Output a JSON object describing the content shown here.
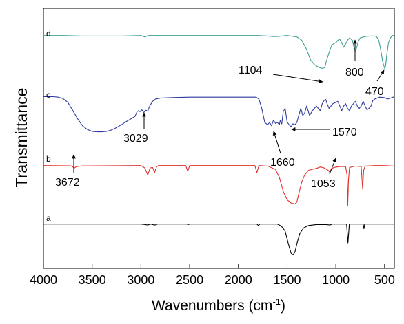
{
  "chart_data": {
    "type": "line",
    "title": "",
    "xlabel": "Wavenumbers (cm",
    "xlabel_sup": "-1",
    "xlabel_close": ")",
    "ylabel": "Transmittance",
    "xlim": [
      4000,
      400
    ],
    "x_reversed": true,
    "x_ticks": [
      4000,
      3500,
      3000,
      2500,
      2000,
      1500,
      1000,
      500
    ],
    "x_tick_labels": [
      "4000",
      "3500",
      "3000",
      "2500",
      "2000",
      "1500",
      "1000",
      "500"
    ],
    "y_ticks": false,
    "grid": false,
    "legend": "none",
    "series": [
      {
        "name": "a",
        "color": "#000000",
        "offset": 0.83,
        "points": [
          [
            4000,
            0.0
          ],
          [
            3000,
            0.0
          ],
          [
            2955,
            0.01
          ],
          [
            2930,
            0.02
          ],
          [
            2900,
            0.0
          ],
          [
            2880,
            0.01
          ],
          [
            2855,
            0.02
          ],
          [
            2830,
            0.0
          ],
          [
            2530,
            0.0
          ],
          [
            2515,
            0.01
          ],
          [
            2500,
            0.0
          ],
          [
            1810,
            0.0
          ],
          [
            1795,
            0.03
          ],
          [
            1780,
            0.0
          ],
          [
            1600,
            0.0
          ],
          [
            1560,
            0.04
          ],
          [
            1520,
            0.15
          ],
          [
            1490,
            0.4
          ],
          [
            1460,
            0.62
          ],
          [
            1440,
            0.66
          ],
          [
            1420,
            0.6
          ],
          [
            1400,
            0.42
          ],
          [
            1370,
            0.2
          ],
          [
            1330,
            0.08
          ],
          [
            1280,
            0.03
          ],
          [
            1200,
            0.01
          ],
          [
            1100,
            0.01
          ],
          [
            1060,
            0.02
          ],
          [
            1040,
            0.0
          ],
          [
            890,
            0.0
          ],
          [
            876,
            0.4
          ],
          [
            862,
            0.0
          ],
          [
            860,
            0.0
          ],
          [
            720,
            0.0
          ],
          [
            712,
            0.1
          ],
          [
            704,
            0.0
          ],
          [
            400,
            0.0
          ]
        ]
      },
      {
        "name": "b",
        "color": "#e0302a",
        "offset": 0.605,
        "points": [
          [
            4000,
            0.0
          ],
          [
            3720,
            0.005
          ],
          [
            3680,
            0.05
          ],
          [
            3660,
            0.02
          ],
          [
            3600,
            0.008
          ],
          [
            3000,
            0.0
          ],
          [
            2960,
            0.05
          ],
          [
            2930,
            0.2
          ],
          [
            2905,
            0.05
          ],
          [
            2880,
            0.04
          ],
          [
            2860,
            0.15
          ],
          [
            2840,
            0.03
          ],
          [
            2820,
            0.0
          ],
          [
            2540,
            0.0
          ],
          [
            2520,
            0.12
          ],
          [
            2500,
            0.0
          ],
          [
            1830,
            0.0
          ],
          [
            1810,
            0.15
          ],
          [
            1790,
            0.0
          ],
          [
            1700,
            0.01
          ],
          [
            1620,
            0.08
          ],
          [
            1580,
            0.25
          ],
          [
            1540,
            0.55
          ],
          [
            1500,
            0.73
          ],
          [
            1460,
            0.8
          ],
          [
            1420,
            0.82
          ],
          [
            1400,
            0.78
          ],
          [
            1380,
            0.6
          ],
          [
            1350,
            0.35
          ],
          [
            1320,
            0.2
          ],
          [
            1280,
            0.1
          ],
          [
            1240,
            0.08
          ],
          [
            1200,
            0.06
          ],
          [
            1160,
            0.03
          ],
          [
            1120,
            0.05
          ],
          [
            1080,
            0.1
          ],
          [
            1060,
            0.15
          ],
          [
            1050,
            0.08
          ],
          [
            1020,
            0.04
          ],
          [
            960,
            0.02
          ],
          [
            900,
            0.02
          ],
          [
            885,
            0.2
          ],
          [
            878,
            0.85
          ],
          [
            870,
            0.3
          ],
          [
            860,
            0.04
          ],
          [
            800,
            0.01
          ],
          [
            740,
            0.02
          ],
          [
            725,
            0.5
          ],
          [
            715,
            0.1
          ],
          [
            700,
            0.01
          ],
          [
            600,
            0.0
          ],
          [
            520,
            0.0
          ],
          [
            400,
            0.01
          ]
        ]
      },
      {
        "name": "c",
        "color": "#2f3aa0",
        "offset": 0.34,
        "points": [
          [
            4000,
            0.0
          ],
          [
            3900,
            0.0
          ],
          [
            3850,
            0.01
          ],
          [
            3800,
            0.04
          ],
          [
            3750,
            0.12
          ],
          [
            3700,
            0.29
          ],
          [
            3650,
            0.47
          ],
          [
            3600,
            0.62
          ],
          [
            3550,
            0.7
          ],
          [
            3500,
            0.74
          ],
          [
            3450,
            0.75
          ],
          [
            3400,
            0.75
          ],
          [
            3350,
            0.74
          ],
          [
            3300,
            0.71
          ],
          [
            3250,
            0.66
          ],
          [
            3200,
            0.6
          ],
          [
            3150,
            0.53
          ],
          [
            3100,
            0.47
          ],
          [
            3060,
            0.42
          ],
          [
            3040,
            0.32
          ],
          [
            3025,
            0.3
          ],
          [
            3010,
            0.32
          ],
          [
            2990,
            0.28
          ],
          [
            2970,
            0.34
          ],
          [
            2950,
            0.29
          ],
          [
            2930,
            0.31
          ],
          [
            2910,
            0.2
          ],
          [
            2880,
            0.1
          ],
          [
            2850,
            0.05
          ],
          [
            2800,
            0.03
          ],
          [
            2700,
            0.02
          ],
          [
            2500,
            0.01
          ],
          [
            2300,
            0.01
          ],
          [
            2000,
            0.01
          ],
          [
            1820,
            0.01
          ],
          [
            1790,
            0.05
          ],
          [
            1760,
            0.25
          ],
          [
            1730,
            0.55
          ],
          [
            1700,
            0.6
          ],
          [
            1680,
            0.55
          ],
          [
            1660,
            0.62
          ],
          [
            1640,
            0.5
          ],
          [
            1620,
            0.57
          ],
          [
            1600,
            0.55
          ],
          [
            1580,
            0.6
          ],
          [
            1570,
            0.5
          ],
          [
            1555,
            0.58
          ],
          [
            1540,
            0.32
          ],
          [
            1520,
            0.25
          ],
          [
            1500,
            0.54
          ],
          [
            1480,
            0.6
          ],
          [
            1460,
            0.64
          ],
          [
            1440,
            0.58
          ],
          [
            1420,
            0.6
          ],
          [
            1400,
            0.55
          ],
          [
            1380,
            0.4
          ],
          [
            1360,
            0.25
          ],
          [
            1340,
            0.4
          ],
          [
            1320,
            0.35
          ],
          [
            1300,
            0.2
          ],
          [
            1270,
            0.4
          ],
          [
            1240,
            0.3
          ],
          [
            1200,
            0.2
          ],
          [
            1180,
            0.25
          ],
          [
            1160,
            0.3
          ],
          [
            1140,
            0.15
          ],
          [
            1120,
            0.08
          ],
          [
            1104,
            0.06
          ],
          [
            1090,
            0.15
          ],
          [
            1070,
            0.25
          ],
          [
            1050,
            0.2
          ],
          [
            1030,
            0.15
          ],
          [
            1000,
            0.12
          ],
          [
            980,
            0.1
          ],
          [
            960,
            0.2
          ],
          [
            940,
            0.3
          ],
          [
            920,
            0.2
          ],
          [
            900,
            0.15
          ],
          [
            880,
            0.25
          ],
          [
            860,
            0.3
          ],
          [
            840,
            0.2
          ],
          [
            800,
            0.1
          ],
          [
            780,
            0.2
          ],
          [
            760,
            0.25
          ],
          [
            740,
            0.2
          ],
          [
            720,
            0.1
          ],
          [
            700,
            0.2
          ],
          [
            680,
            0.28
          ],
          [
            660,
            0.25
          ],
          [
            640,
            0.2
          ],
          [
            620,
            0.08
          ],
          [
            600,
            0.05
          ],
          [
            550,
            0.01
          ],
          [
            500,
            0.02
          ],
          [
            470,
            0.05
          ],
          [
            440,
            0.03
          ],
          [
            400,
            0.0
          ]
        ]
      },
      {
        "name": "d",
        "color": "#3e9e94",
        "offset": 0.105,
        "points": [
          [
            4000,
            0.0
          ],
          [
            3800,
            0.0
          ],
          [
            3600,
            0.01
          ],
          [
            3400,
            0.01
          ],
          [
            3200,
            0.01
          ],
          [
            3000,
            0.0
          ],
          [
            2960,
            0.03
          ],
          [
            2920,
            0.0
          ],
          [
            2500,
            0.0
          ],
          [
            2000,
            0.0
          ],
          [
            1800,
            0.0
          ],
          [
            1700,
            0.01
          ],
          [
            1650,
            0.02
          ],
          [
            1600,
            0.02
          ],
          [
            1500,
            0.0
          ],
          [
            1400,
            0.03
          ],
          [
            1350,
            0.1
          ],
          [
            1300,
            0.3
          ],
          [
            1260,
            0.52
          ],
          [
            1220,
            0.62
          ],
          [
            1190,
            0.66
          ],
          [
            1160,
            0.69
          ],
          [
            1140,
            0.7
          ],
          [
            1120,
            0.69
          ],
          [
            1110,
            0.66
          ],
          [
            1100,
            0.56
          ],
          [
            1090,
            0.5
          ],
          [
            1080,
            0.43
          ],
          [
            1060,
            0.3
          ],
          [
            1040,
            0.2
          ],
          [
            1000,
            0.15
          ],
          [
            980,
            0.1
          ],
          [
            960,
            0.08
          ],
          [
            940,
            0.15
          ],
          [
            920,
            0.25
          ],
          [
            900,
            0.18
          ],
          [
            880,
            0.1
          ],
          [
            860,
            0.05
          ],
          [
            830,
            0.1
          ],
          [
            815,
            0.25
          ],
          [
            800,
            0.33
          ],
          [
            785,
            0.25
          ],
          [
            770,
            0.12
          ],
          [
            750,
            0.05
          ],
          [
            700,
            0.02
          ],
          [
            650,
            0.01
          ],
          [
            600,
            0.01
          ],
          [
            580,
            0.03
          ],
          [
            560,
            0.1
          ],
          [
            540,
            0.3
          ],
          [
            520,
            0.55
          ],
          [
            500,
            0.7
          ],
          [
            490,
            0.65
          ],
          [
            480,
            0.45
          ],
          [
            470,
            0.3
          ],
          [
            460,
            0.15
          ],
          [
            440,
            0.05
          ],
          [
            420,
            0.0
          ],
          [
            400,
            0.0
          ]
        ]
      }
    ],
    "curve_labels": [
      "a",
      "b",
      "c",
      "d"
    ],
    "annotations": [
      {
        "label": "3672"
      },
      {
        "label": "3029"
      },
      {
        "label": "1660"
      },
      {
        "label": "1570"
      },
      {
        "label": "1104"
      },
      {
        "label": "1053"
      },
      {
        "label": "800"
      },
      {
        "label": "470"
      }
    ]
  }
}
